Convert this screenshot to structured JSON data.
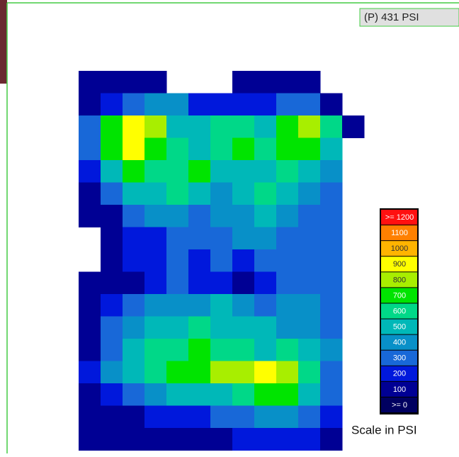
{
  "reading": "(P) 431 PSI",
  "scale": {
    "title": "Scale in PSI",
    "levels": [
      {
        "value": 1200,
        "label": ">= 1200",
        "color": "#ff1010"
      },
      {
        "value": 1100,
        "label": "1100",
        "color": "#ff8000"
      },
      {
        "value": 1000,
        "label": "1000",
        "color": "#ffb400"
      },
      {
        "value": 900,
        "label": "900",
        "color": "#ffff00"
      },
      {
        "value": 800,
        "label": "800",
        "color": "#a8ee00"
      },
      {
        "value": 700,
        "label": "700",
        "color": "#00e400"
      },
      {
        "value": 600,
        "label": "600",
        "color": "#00d888"
      },
      {
        "value": 500,
        "label": "500",
        "color": "#00b8b8"
      },
      {
        "value": 400,
        "label": "400",
        "color": "#0890c8"
      },
      {
        "value": 300,
        "label": "300",
        "color": "#1868d8"
      },
      {
        "value": 200,
        "label": "200",
        "color": "#0018dc"
      },
      {
        "value": 100,
        "label": "100",
        "color": "#000094"
      },
      {
        "value": 0,
        "label": ">= 0",
        "color": "#000060"
      }
    ]
  },
  "grid": {
    "rows": [
      [
        null,
        100,
        100,
        100,
        100,
        null,
        null,
        null,
        100,
        100,
        100,
        100,
        null,
        null
      ],
      [
        null,
        100,
        200,
        300,
        400,
        400,
        200,
        200,
        200,
        200,
        300,
        300,
        100,
        null
      ],
      [
        null,
        300,
        700,
        900,
        800,
        500,
        500,
        600,
        600,
        500,
        700,
        800,
        600,
        100
      ],
      [
        null,
        300,
        700,
        900,
        700,
        600,
        500,
        600,
        700,
        600,
        700,
        700,
        500,
        null
      ],
      [
        null,
        200,
        500,
        700,
        600,
        600,
        700,
        500,
        500,
        500,
        600,
        500,
        400,
        null
      ],
      [
        null,
        100,
        300,
        500,
        500,
        600,
        500,
        400,
        500,
        600,
        500,
        400,
        300,
        null
      ],
      [
        null,
        100,
        100,
        300,
        400,
        400,
        300,
        400,
        400,
        500,
        400,
        300,
        300,
        null
      ],
      [
        null,
        null,
        100,
        200,
        200,
        300,
        300,
        300,
        400,
        400,
        300,
        300,
        300,
        null
      ],
      [
        null,
        null,
        100,
        200,
        200,
        300,
        200,
        300,
        200,
        300,
        300,
        300,
        300,
        null
      ],
      [
        null,
        100,
        100,
        100,
        200,
        300,
        200,
        200,
        100,
        200,
        300,
        300,
        300,
        null
      ],
      [
        null,
        100,
        200,
        300,
        400,
        400,
        400,
        500,
        400,
        300,
        400,
        400,
        300,
        null
      ],
      [
        null,
        100,
        300,
        400,
        500,
        500,
        600,
        500,
        500,
        500,
        400,
        400,
        300,
        null
      ],
      [
        null,
        100,
        300,
        500,
        600,
        600,
        700,
        600,
        600,
        500,
        600,
        500,
        400,
        null
      ],
      [
        null,
        200,
        400,
        500,
        600,
        700,
        700,
        800,
        800,
        900,
        800,
        600,
        300,
        null
      ],
      [
        null,
        100,
        200,
        300,
        400,
        500,
        500,
        500,
        600,
        700,
        700,
        500,
        300,
        null
      ],
      [
        null,
        100,
        100,
        100,
        200,
        200,
        200,
        300,
        300,
        400,
        400,
        300,
        200,
        null
      ],
      [
        null,
        100,
        100,
        100,
        100,
        100,
        100,
        100,
        200,
        200,
        200,
        200,
        100,
        null
      ]
    ]
  }
}
